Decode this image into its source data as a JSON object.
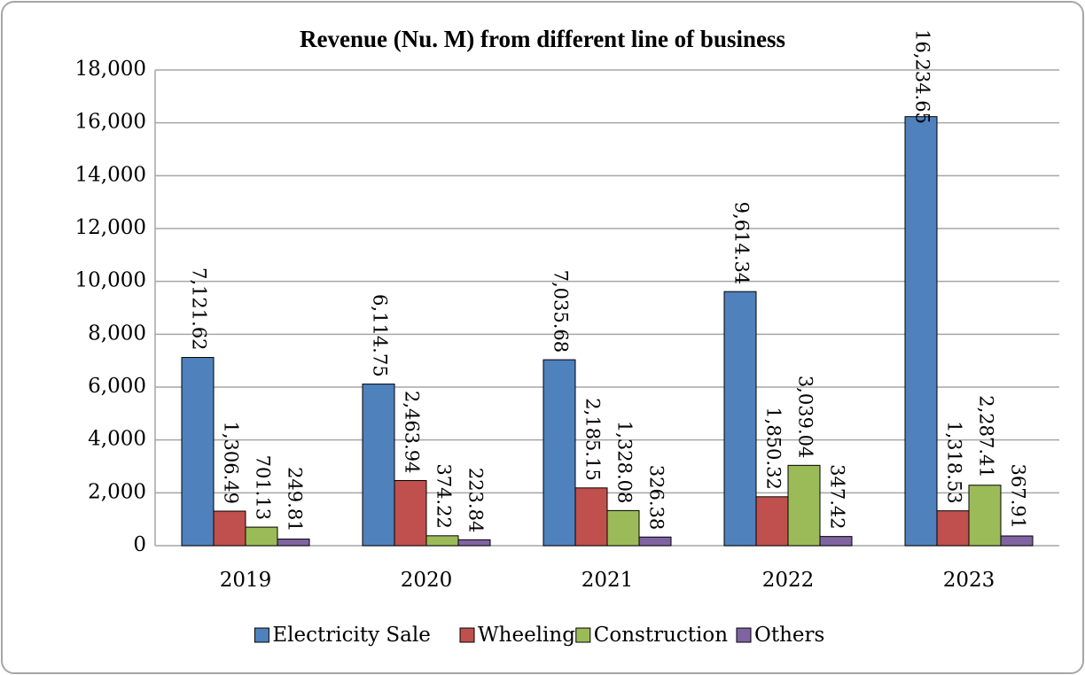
{
  "chart_data": {
    "type": "bar",
    "title": "Revenue  (Nu. M) from different  line  of business",
    "categories": [
      "2019",
      "2020",
      "2021",
      "2022",
      "2023"
    ],
    "series": [
      {
        "name": "Electricity Sale",
        "color": "#4f81bd",
        "values": [
          7121.62,
          6114.75,
          7035.68,
          9614.34,
          16234.65
        ],
        "value_labels": [
          "7,121.62",
          "6,114.75",
          "7,035.68",
          "9,614.34",
          "16,234.65"
        ]
      },
      {
        "name": "Wheeling",
        "color": "#c0504d",
        "values": [
          1306.49,
          2463.94,
          2185.15,
          1850.32,
          1318.53
        ],
        "value_labels": [
          "1,306.49",
          "2,463.94",
          "2,185.15",
          "1,850.32",
          "1,318.53"
        ]
      },
      {
        "name": "Construction",
        "color": "#9bbb59",
        "values": [
          701.13,
          374.22,
          1328.08,
          3039.04,
          2287.41
        ],
        "value_labels": [
          "701.13",
          "374.22",
          "1,328.08",
          "3,039.04",
          "2,287.41"
        ]
      },
      {
        "name": "Others",
        "color": "#8064a2",
        "values": [
          249.81,
          223.84,
          326.38,
          347.42,
          367.91
        ],
        "value_labels": [
          "249.81",
          "223.84",
          "326.38",
          "347.42",
          "367.91"
        ]
      }
    ],
    "ylim": [
      0,
      18000
    ],
    "yticks": [
      0,
      {
        "value": 2000,
        "label": "2,000"
      },
      {
        "value": 4000,
        "label": "4,000"
      },
      {
        "value": 6000,
        "label": "6,000"
      },
      {
        "value": 8000,
        "label": "8,000"
      },
      {
        "value": 10000,
        "label": "10,000"
      },
      {
        "value": 12000,
        "label": "12,000"
      },
      {
        "value": 14000,
        "label": "14,000"
      },
      {
        "value": 16000,
        "label": "16,000"
      },
      {
        "value": 18000,
        "label": "18,000"
      }
    ],
    "grid": true,
    "legend": "bottom"
  }
}
